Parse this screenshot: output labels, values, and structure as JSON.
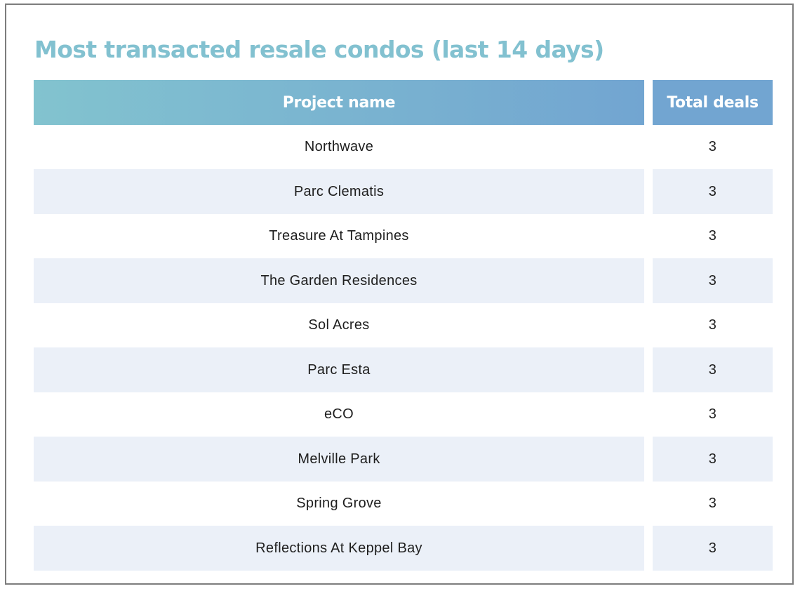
{
  "chart_data": {
    "type": "table",
    "title": "Most transacted resale condos (last 14 days)",
    "columns": [
      "Project name",
      "Total deals"
    ],
    "rows": [
      {
        "project": "Northwave",
        "deals": 3
      },
      {
        "project": "Parc Clematis",
        "deals": 3
      },
      {
        "project": "Treasure At Tampines",
        "deals": 3
      },
      {
        "project": "The Garden Residences",
        "deals": 3
      },
      {
        "project": "Sol Acres",
        "deals": 3
      },
      {
        "project": "Parc Esta",
        "deals": 3
      },
      {
        "project": "eCO",
        "deals": 3
      },
      {
        "project": "Melville Park",
        "deals": 3
      },
      {
        "project": "Spring Grove",
        "deals": 3
      },
      {
        "project": "Reflections At Keppel Bay",
        "deals": 3
      }
    ]
  },
  "colors": {
    "title": "#82c1d0",
    "header_start": "#82c3cf",
    "header_end": "#72a5d1",
    "band": "#ebf0f8",
    "text": "#1e1e1e"
  }
}
